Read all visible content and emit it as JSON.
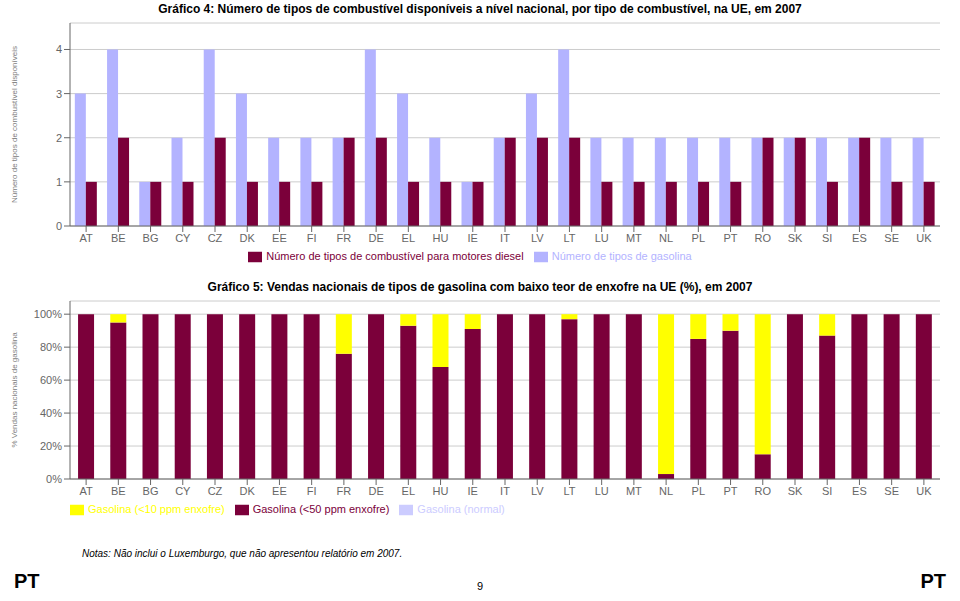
{
  "chart_data": [
    {
      "type": "bar",
      "title": "Gráfico 4: Número de tipos de combustível disponíveis a nível nacional, por tipo de combustível, na UE, em 2007",
      "ylabel": "Número de tipos de combustível disponíveis",
      "categories": [
        "AT",
        "BE",
        "BG",
        "CY",
        "CZ",
        "DK",
        "EE",
        "FI",
        "FR",
        "DE",
        "EL",
        "HU",
        "IE",
        "IT",
        "LV",
        "LT",
        "LU",
        "MT",
        "NL",
        "PL",
        "PT",
        "RO",
        "SK",
        "SI",
        "ES",
        "SE",
        "UK"
      ],
      "series": [
        {
          "name": "Número de tipos de gasolina",
          "color": "#b3b3ff",
          "values": [
            3,
            4,
            1,
            2,
            4,
            3,
            2,
            2,
            2,
            4,
            3,
            2,
            1,
            2,
            3,
            4,
            2,
            2,
            2,
            2,
            2,
            2,
            2,
            2,
            2,
            2,
            2
          ]
        },
        {
          "name": "Número de tipos de combustível para motores diesel",
          "color": "#7b003a",
          "values": [
            1,
            2,
            1,
            1,
            2,
            1,
            1,
            1,
            2,
            2,
            1,
            1,
            1,
            2,
            2,
            2,
            1,
            1,
            1,
            1,
            1,
            2,
            2,
            1,
            2,
            1,
            1
          ]
        }
      ],
      "ylim": [
        0,
        4.6
      ],
      "yticks": [
        0,
        1,
        2,
        3,
        4
      ],
      "grid": true,
      "legend": "bottom"
    },
    {
      "type": "bar",
      "title": "Gráfico 5: Vendas nacionais de tipos de gasolina com baixo teor de enxofre na UE (%), em 2007",
      "ylabel": "% Vendas nacionais de gasolina",
      "categories": [
        "AT",
        "BE",
        "BG",
        "CY",
        "CZ",
        "DK",
        "EE",
        "FI",
        "FR",
        "DE",
        "EL",
        "HU",
        "IE",
        "IT",
        "LV",
        "LT",
        "LU",
        "MT",
        "NL",
        "PL",
        "PT",
        "RO",
        "SK",
        "SI",
        "ES",
        "SE",
        "UK"
      ],
      "series": [
        {
          "name": "Gasolina (normal)",
          "color": "#ccccff",
          "values": [
            0,
            0,
            0,
            0,
            0,
            0,
            0,
            0,
            0,
            0,
            0,
            0,
            0,
            0,
            0,
            0,
            0,
            0,
            0,
            0,
            0,
            0,
            0,
            0,
            0,
            0,
            0
          ]
        },
        {
          "name": "Gasolina (<50 ppm enxofre)",
          "color": "#7b003a",
          "values": [
            100,
            95,
            100,
            100,
            100,
            100,
            100,
            100,
            76,
            100,
            93,
            68,
            91,
            100,
            100,
            97,
            100,
            100,
            3,
            85,
            90,
            15,
            100,
            87,
            100,
            100,
            100
          ]
        },
        {
          "name": "Gasolina (<10 ppm enxofre)",
          "color": "#ffff00",
          "values": [
            0,
            5,
            0,
            0,
            0,
            0,
            0,
            0,
            24,
            0,
            7,
            32,
            9,
            0,
            0,
            3,
            0,
            0,
            97,
            15,
            10,
            85,
            0,
            13,
            0,
            0,
            0
          ]
        }
      ],
      "stacked": true,
      "ylim": [
        0,
        108
      ],
      "yticks": [
        {
          "value": 0,
          "label": "0%"
        },
        {
          "value": 20,
          "label": "20%"
        },
        {
          "value": 40,
          "label": "40%"
        },
        {
          "value": 60,
          "label": "60%"
        },
        {
          "value": 80,
          "label": "80%"
        },
        {
          "value": 100,
          "label": "100%"
        }
      ],
      "grid": true,
      "legend": "bottom-left",
      "annotations": [
        "Notas: Não inclui o Luxemburgo, que não apresentou relatório em 2007.",
        "9",
        "PT",
        "PT"
      ]
    }
  ]
}
